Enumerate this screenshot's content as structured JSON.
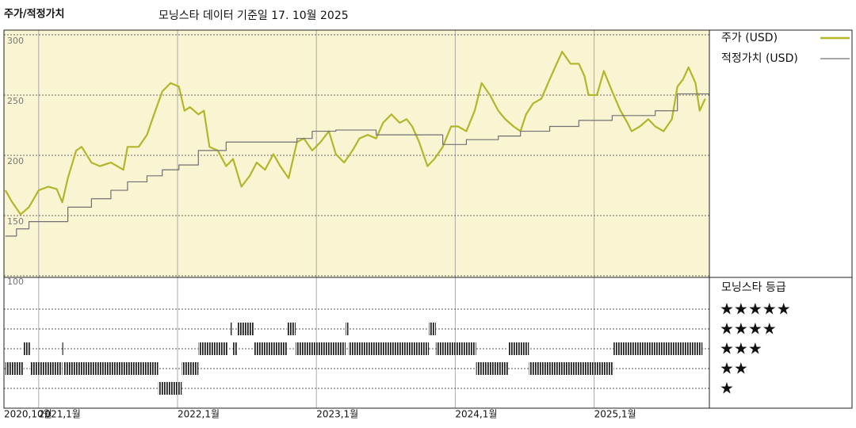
{
  "chart_data": [
    {
      "type": "line",
      "title": "주가/적정가치",
      "subtitle": "모닝스타 데이터 기준일 17. 10월 2025",
      "background": "#f9f5d3",
      "grid": true,
      "xlim": [
        2020.75,
        2025.83
      ],
      "ylim": [
        98.7,
        303.9
      ],
      "yticks": [
        100,
        150,
        200,
        250,
        300
      ],
      "series": [
        {
          "name": "주가 (USD)",
          "color": "#b3b52a",
          "x": [
            2020.76,
            2020.81,
            2020.87,
            2020.93,
            2021.0,
            2021.07,
            2021.13,
            2021.17,
            2021.21,
            2021.27,
            2021.31,
            2021.38,
            2021.44,
            2021.52,
            2021.61,
            2021.64,
            2021.72,
            2021.78,
            2021.84,
            2021.89,
            2021.95,
            2022.01,
            2022.05,
            2022.09,
            2022.15,
            2022.19,
            2022.23,
            2022.29,
            2022.35,
            2022.4,
            2022.46,
            2022.52,
            2022.57,
            2022.63,
            2022.69,
            2022.74,
            2022.8,
            2022.86,
            2022.91,
            2022.97,
            2023.03,
            2023.09,
            2023.14,
            2023.2,
            2023.26,
            2023.31,
            2023.37,
            2023.43,
            2023.48,
            2023.54,
            2023.6,
            2023.65,
            2023.69,
            2023.74,
            2023.8,
            2023.85,
            2023.91,
            2023.97,
            2024.02,
            2024.08,
            2024.14,
            2024.19,
            2024.25,
            2024.31,
            2024.36,
            2024.42,
            2024.47,
            2024.51,
            2024.56,
            2024.62,
            2024.68,
            2024.73,
            2024.77,
            2024.83,
            2024.89,
            2024.93,
            2024.96,
            2025.02,
            2025.07,
            2025.13,
            2025.19,
            2025.24,
            2025.27,
            2025.33,
            2025.39,
            2025.44,
            2025.5,
            2025.56,
            2025.6,
            2025.64,
            2025.68,
            2025.73,
            2025.76,
            2025.8
          ],
          "values": [
            171,
            161,
            151,
            157,
            171,
            174,
            172,
            161,
            181,
            204,
            207,
            194,
            191,
            194,
            188,
            207,
            207,
            217,
            237,
            253,
            260,
            257,
            237,
            240,
            234,
            237,
            207,
            204,
            191,
            197,
            174,
            183,
            194,
            188,
            201,
            191,
            181,
            211,
            214,
            204,
            211,
            220,
            201,
            194,
            204,
            214,
            217,
            214,
            227,
            234,
            227,
            230,
            224,
            211,
            191,
            197,
            207,
            224,
            224,
            220,
            237,
            260,
            250,
            237,
            230,
            224,
            220,
            234,
            243,
            247,
            263,
            276,
            286,
            276,
            276,
            266,
            250,
            250,
            270,
            253,
            237,
            227,
            220,
            224,
            230,
            224,
            220,
            230,
            257,
            263,
            273,
            260,
            237,
            247
          ]
        },
        {
          "name": "적정가치 (USD)",
          "color": "#707070",
          "step": true,
          "x": [
            2020.76,
            2020.84,
            2020.93,
            2021.21,
            2021.38,
            2021.52,
            2021.64,
            2021.78,
            2021.89,
            2022.01,
            2022.15,
            2022.35,
            2022.86,
            2022.97,
            2023.14,
            2023.43,
            2023.91,
            2024.08,
            2024.31,
            2024.47,
            2024.68,
            2024.89,
            2025.13,
            2025.44,
            2025.6
          ],
          "values": [
            133,
            139,
            145,
            157,
            164,
            171,
            178,
            183,
            188,
            192,
            204,
            211,
            214,
            220,
            221,
            217,
            209,
            213,
            216,
            220,
            224,
            229,
            233,
            237,
            251
          ]
        }
      ]
    },
    {
      "type": "rating",
      "title": "모닝스타 등급",
      "xlim": [
        2020.75,
        2025.83
      ],
      "ylim": [
        0,
        6.6
      ],
      "xticks": [
        {
          "value": 2020.75,
          "label": "2020,10월"
        },
        {
          "value": 2021,
          "label": "2021,1월"
        },
        {
          "value": 2022,
          "label": "2022,1월"
        },
        {
          "value": 2023,
          "label": "2023,1월"
        },
        {
          "value": 2024,
          "label": "2024,1월"
        },
        {
          "value": 2025,
          "label": "2025,1월"
        }
      ],
      "yticks": [
        {
          "value": 5,
          "label": "★★★★★"
        },
        {
          "value": 4,
          "label": "★★★★"
        },
        {
          "value": 3,
          "label": "★★★"
        },
        {
          "value": 2,
          "label": "★★"
        },
        {
          "value": 1,
          "label": "★"
        }
      ],
      "x": [
        2020.76,
        2020.89,
        2020.94,
        2021.17,
        2021.18,
        2021.86,
        2022.03,
        2022.15,
        2022.38,
        2022.4,
        2022.43,
        2022.55,
        2022.79,
        2022.85,
        2023.21,
        2023.23,
        2023.81,
        2023.86,
        2024.15,
        2024.38,
        2024.53,
        2025.14
      ],
      "x_end": [
        2020.89,
        2020.94,
        2021.17,
        2021.18,
        2021.86,
        2022.03,
        2022.15,
        2022.36,
        2022.39,
        2022.43,
        2022.55,
        2022.79,
        2022.85,
        2023.21,
        2023.23,
        2023.81,
        2023.86,
        2024.15,
        2024.38,
        2024.53,
        2025.14,
        2025.78
      ],
      "values": [
        2,
        3,
        2,
        3,
        2,
        1,
        2,
        3,
        4,
        3,
        4,
        3,
        4,
        3,
        4,
        3,
        4,
        3,
        2,
        3,
        2,
        3
      ]
    }
  ]
}
